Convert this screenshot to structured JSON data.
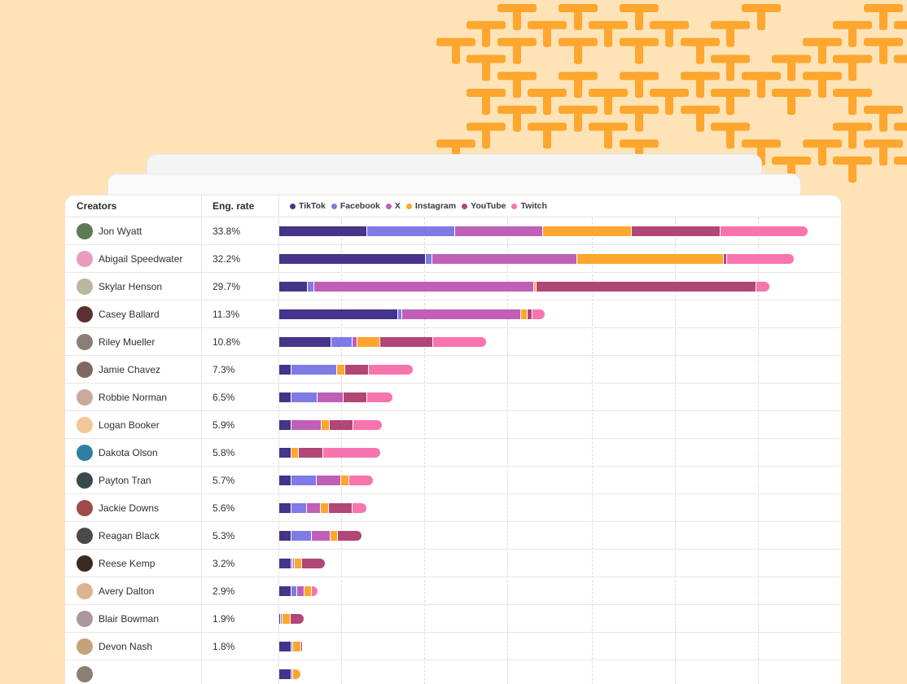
{
  "colors": {
    "background": "#fee3b7",
    "pattern": "#fea62e"
  },
  "table": {
    "headers": {
      "creators": "Creators",
      "rate": "Eng. rate"
    },
    "legend": [
      {
        "label": "TikTok",
        "color": "#46338a"
      },
      {
        "label": "Facebook",
        "color": "#7e7be6"
      },
      {
        "label": "X",
        "color": "#c05fb7"
      },
      {
        "label": "Instagram",
        "color": "#fea62e"
      },
      {
        "label": "YouTube",
        "color": "#b24677"
      },
      {
        "label": "Twitch",
        "color": "#f874ae"
      }
    ],
    "rows": [
      {
        "name": "Jon Wyatt",
        "rate": "33.8%",
        "avatar": "#5d7a55",
        "segments": [
          10.6,
          10.6,
          10.6,
          10.7,
          10.6,
          10.6
        ]
      },
      {
        "name": "Abigail Speedwater",
        "rate": "32.2%",
        "avatar": "#e79cc0",
        "segments": [
          17.6,
          0.8,
          17.5,
          17.6,
          0.4,
          8.2
        ]
      },
      {
        "name": "Skylar Henson",
        "rate": "29.7%",
        "avatar": "#b9b6a2",
        "segments": [
          3.4,
          0.8,
          26.5,
          0.3,
          26.5,
          1.6
        ]
      },
      {
        "name": "Casey Ballard",
        "rate": "11.3%",
        "avatar": "#5a3030",
        "segments": [
          14.3,
          0.5,
          14.3,
          0.8,
          0.6,
          1.6
        ]
      },
      {
        "name": "Riley Mueller",
        "rate": "10.8%",
        "avatar": "#8a7e78",
        "segments": [
          6.3,
          2.5,
          0.6,
          2.8,
          6.3,
          6.5
        ]
      },
      {
        "name": "Jamie Chavez",
        "rate": "7.3%",
        "avatar": "#7d6a5c",
        "segments": [
          1.5,
          5.5,
          0,
          0.9,
          2.9,
          5.4
        ]
      },
      {
        "name": "Robbie Norman",
        "rate": "6.5%",
        "avatar": "#c9a99a",
        "segments": [
          1.5,
          3.1,
          3.1,
          0,
          2.9,
          3.1
        ]
      },
      {
        "name": "Logan Booker",
        "rate": "5.9%",
        "avatar": "#f2c79a",
        "segments": [
          1.5,
          0,
          3.6,
          1.0,
          2.8,
          3.6
        ]
      },
      {
        "name": "Dakota Olson",
        "rate": "5.8%",
        "avatar": "#2f7fa0",
        "segments": [
          1.5,
          0,
          0,
          0.9,
          2.9,
          7.0
        ]
      },
      {
        "name": "Payton Tran",
        "rate": "5.7%",
        "avatar": "#3a4a4a",
        "segments": [
          1.5,
          3.0,
          3.0,
          0.9,
          0,
          3.0
        ]
      },
      {
        "name": "Jackie Downs",
        "rate": "5.6%",
        "avatar": "#a04a4a",
        "segments": [
          1.5,
          1.8,
          1.7,
          1.0,
          2.8,
          1.8
        ]
      },
      {
        "name": "Reagan Black",
        "rate": "5.3%",
        "avatar": "#4a4a4a",
        "segments": [
          1.5,
          2.4,
          2.3,
          0.9,
          2.9,
          0
        ]
      },
      {
        "name": "Reese Kemp",
        "rate": "3.2%",
        "avatar": "#3a2a22",
        "segments": [
          1.5,
          0.1,
          0.1,
          0.9,
          2.8,
          0
        ]
      },
      {
        "name": "Avery Dalton",
        "rate": "2.9%",
        "avatar": "#d9b48c",
        "segments": [
          1.5,
          0.7,
          0.8,
          0.9,
          0,
          0.8
        ]
      },
      {
        "name": "Blair Bowman",
        "rate": "1.9%",
        "avatar": "#a9989c",
        "segments": [
          0.1,
          0.1,
          0,
          1.0,
          1.6,
          0
        ]
      },
      {
        "name": "Devon Nash",
        "rate": "1.8%",
        "avatar": "#c6a27a",
        "segments": [
          1.5,
          0.1,
          0,
          1.0,
          0.1,
          0
        ]
      },
      {
        "name": "",
        "rate": "",
        "avatar": "#8a8070",
        "segments": [
          1.5,
          0.1,
          0,
          1.0,
          0,
          0
        ]
      }
    ]
  }
}
